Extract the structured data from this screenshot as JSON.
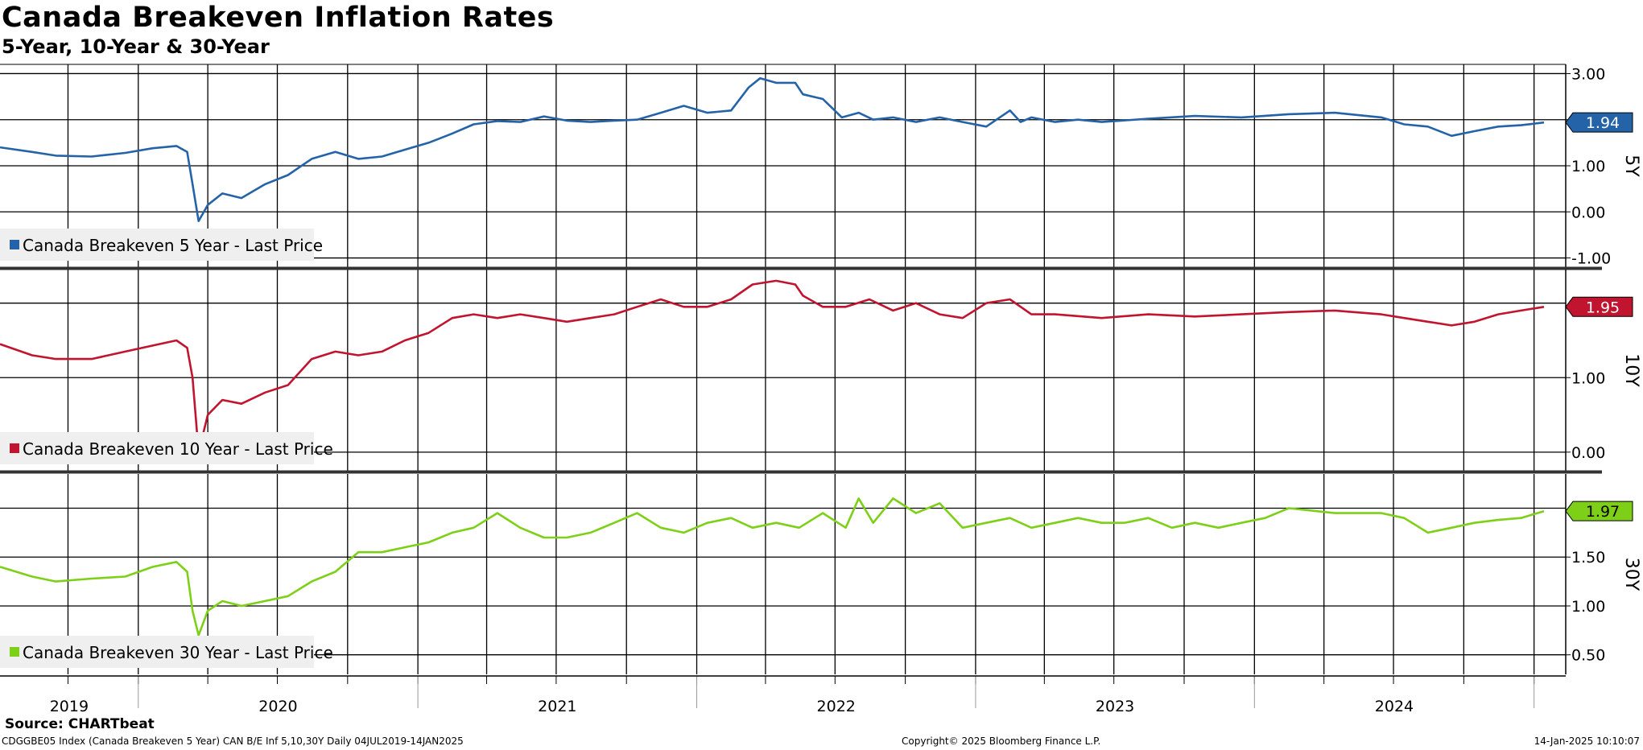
{
  "title": "Canada Breakeven Inflation Rates",
  "subtitle": "5-Year, 10-Year & 30-Year",
  "source": "Source: CHARTbeat",
  "footer": {
    "left": "CDGGBE05 Index (Canada Breakeven 5 Year) CAN B/E Inf 5,10,30Y  Daily 04JUL2019-14JAN2025",
    "center": "Copyright© 2025 Bloomberg Finance L.P.",
    "right": "14-Jan-2025 10:10:07"
  },
  "chart_data": {
    "type": "line",
    "x_range": [
      "2019-07-04",
      "2025-01-14"
    ],
    "x_tick_labels": [
      "2019",
      "2020",
      "2021",
      "2022",
      "2023",
      "2024"
    ],
    "colors": {
      "5Y": "#2563a8",
      "10Y": "#c0142f",
      "30Y": "#7dd017"
    },
    "panels": [
      {
        "axis_label": "5Y",
        "legend": "Canada Breakeven 5 Year  - Last Price",
        "last_value": "1.94",
        "ylim": [
          -1.2,
          3.2
        ],
        "y_ticks": [
          "3.00",
          "2.00",
          "1.00",
          "0.00",
          "-1.00"
        ],
        "y_tick_values": [
          3,
          2,
          1,
          0,
          -1
        ],
        "points": [
          [
            "2019-07-04",
            1.4
          ],
          [
            "2019-08-15",
            1.3
          ],
          [
            "2019-09-15",
            1.22
          ],
          [
            "2019-11-01",
            1.2
          ],
          [
            "2019-12-15",
            1.28
          ],
          [
            "2020-01-20",
            1.38
          ],
          [
            "2020-02-20",
            1.43
          ],
          [
            "2020-03-05",
            1.3
          ],
          [
            "2020-03-12",
            0.6
          ],
          [
            "2020-03-20",
            -0.2
          ],
          [
            "2020-04-01",
            0.15
          ],
          [
            "2020-04-20",
            0.4
          ],
          [
            "2020-05-15",
            0.3
          ],
          [
            "2020-06-15",
            0.6
          ],
          [
            "2020-07-15",
            0.8
          ],
          [
            "2020-08-15",
            1.15
          ],
          [
            "2020-09-15",
            1.3
          ],
          [
            "2020-10-15",
            1.15
          ],
          [
            "2020-11-15",
            1.2
          ],
          [
            "2020-12-15",
            1.35
          ],
          [
            "2021-01-15",
            1.5
          ],
          [
            "2021-02-15",
            1.7
          ],
          [
            "2021-03-15",
            1.9
          ],
          [
            "2021-04-15",
            1.97
          ],
          [
            "2021-05-15",
            1.95
          ],
          [
            "2021-06-15",
            2.07
          ],
          [
            "2021-07-15",
            1.98
          ],
          [
            "2021-08-15",
            1.95
          ],
          [
            "2021-09-15",
            1.98
          ],
          [
            "2021-10-15",
            2.0
          ],
          [
            "2021-11-15",
            2.15
          ],
          [
            "2021-12-15",
            2.3
          ],
          [
            "2022-01-15",
            2.15
          ],
          [
            "2022-02-15",
            2.2
          ],
          [
            "2022-03-10",
            2.7
          ],
          [
            "2022-03-25",
            2.9
          ],
          [
            "2022-04-15",
            2.8
          ],
          [
            "2022-05-10",
            2.8
          ],
          [
            "2022-05-20",
            2.55
          ],
          [
            "2022-06-15",
            2.45
          ],
          [
            "2022-07-10",
            2.05
          ],
          [
            "2022-08-01",
            2.15
          ],
          [
            "2022-08-20",
            2.0
          ],
          [
            "2022-09-15",
            2.05
          ],
          [
            "2022-10-15",
            1.95
          ],
          [
            "2022-11-15",
            2.05
          ],
          [
            "2022-12-15",
            1.95
          ],
          [
            "2023-01-15",
            1.85
          ],
          [
            "2023-02-15",
            2.2
          ],
          [
            "2023-03-01",
            1.95
          ],
          [
            "2023-03-15",
            2.05
          ],
          [
            "2023-04-15",
            1.95
          ],
          [
            "2023-05-15",
            2.0
          ],
          [
            "2023-06-15",
            1.95
          ],
          [
            "2023-08-15",
            2.02
          ],
          [
            "2023-10-15",
            2.08
          ],
          [
            "2023-12-15",
            2.05
          ],
          [
            "2024-02-15",
            2.12
          ],
          [
            "2024-04-15",
            2.15
          ],
          [
            "2024-06-15",
            2.05
          ],
          [
            "2024-07-15",
            1.9
          ],
          [
            "2024-08-15",
            1.85
          ],
          [
            "2024-09-15",
            1.65
          ],
          [
            "2024-10-15",
            1.75
          ],
          [
            "2024-11-15",
            1.85
          ],
          [
            "2024-12-15",
            1.88
          ],
          [
            "2025-01-14",
            1.94
          ]
        ]
      },
      {
        "axis_label": "10Y",
        "legend": "Canada Breakeven 10 Year  - Last Price",
        "last_value": "1.95",
        "ylim": [
          -0.25,
          2.45
        ],
        "y_ticks": [
          "1.00",
          "0.00"
        ],
        "y_tick_values": [
          1,
          0
        ],
        "grid_values": [
          2
        ],
        "points": [
          [
            "2019-07-04",
            1.45
          ],
          [
            "2019-08-15",
            1.3
          ],
          [
            "2019-09-15",
            1.25
          ],
          [
            "2019-11-01",
            1.25
          ],
          [
            "2019-12-15",
            1.35
          ],
          [
            "2020-01-20",
            1.43
          ],
          [
            "2020-02-20",
            1.5
          ],
          [
            "2020-03-05",
            1.4
          ],
          [
            "2020-03-12",
            1.0
          ],
          [
            "2020-03-20",
            0.0
          ],
          [
            "2020-04-01",
            0.5
          ],
          [
            "2020-04-20",
            0.7
          ],
          [
            "2020-05-15",
            0.65
          ],
          [
            "2020-06-15",
            0.8
          ],
          [
            "2020-07-15",
            0.9
          ],
          [
            "2020-08-15",
            1.25
          ],
          [
            "2020-09-15",
            1.35
          ],
          [
            "2020-10-15",
            1.3
          ],
          [
            "2020-11-15",
            1.35
          ],
          [
            "2020-12-15",
            1.5
          ],
          [
            "2021-01-15",
            1.6
          ],
          [
            "2021-02-15",
            1.8
          ],
          [
            "2021-03-15",
            1.85
          ],
          [
            "2021-04-15",
            1.8
          ],
          [
            "2021-05-15",
            1.85
          ],
          [
            "2021-06-15",
            1.8
          ],
          [
            "2021-07-15",
            1.75
          ],
          [
            "2021-08-15",
            1.8
          ],
          [
            "2021-09-15",
            1.85
          ],
          [
            "2021-10-15",
            1.95
          ],
          [
            "2021-11-15",
            2.05
          ],
          [
            "2021-12-15",
            1.95
          ],
          [
            "2022-01-15",
            1.95
          ],
          [
            "2022-02-15",
            2.05
          ],
          [
            "2022-03-15",
            2.25
          ],
          [
            "2022-04-15",
            2.3
          ],
          [
            "2022-05-10",
            2.25
          ],
          [
            "2022-05-20",
            2.1
          ],
          [
            "2022-06-15",
            1.95
          ],
          [
            "2022-07-15",
            1.95
          ],
          [
            "2022-08-15",
            2.05
          ],
          [
            "2022-09-15",
            1.9
          ],
          [
            "2022-10-15",
            2.0
          ],
          [
            "2022-11-15",
            1.85
          ],
          [
            "2022-12-15",
            1.8
          ],
          [
            "2023-01-15",
            2.0
          ],
          [
            "2023-02-15",
            2.05
          ],
          [
            "2023-03-15",
            1.85
          ],
          [
            "2023-04-15",
            1.85
          ],
          [
            "2023-06-15",
            1.8
          ],
          [
            "2023-08-15",
            1.85
          ],
          [
            "2023-10-15",
            1.82
          ],
          [
            "2023-12-15",
            1.85
          ],
          [
            "2024-02-15",
            1.88
          ],
          [
            "2024-04-15",
            1.9
          ],
          [
            "2024-06-15",
            1.85
          ],
          [
            "2024-07-15",
            1.8
          ],
          [
            "2024-08-15",
            1.75
          ],
          [
            "2024-09-15",
            1.7
          ],
          [
            "2024-10-15",
            1.75
          ],
          [
            "2024-11-15",
            1.85
          ],
          [
            "2024-12-15",
            1.9
          ],
          [
            "2025-01-14",
            1.95
          ]
        ]
      },
      {
        "axis_label": "30Y",
        "legend": "Canada Breakeven 30 Year  - Last Price",
        "last_value": "1.97",
        "ylim": [
          0.3,
          2.35
        ],
        "y_ticks": [
          "1.50",
          "1.00",
          "0.50"
        ],
        "y_tick_values": [
          1.5,
          1.0,
          0.5
        ],
        "grid_values": [
          2.0
        ],
        "points": [
          [
            "2019-07-04",
            1.4
          ],
          [
            "2019-08-15",
            1.3
          ],
          [
            "2019-09-15",
            1.25
          ],
          [
            "2019-11-01",
            1.28
          ],
          [
            "2019-12-15",
            1.3
          ],
          [
            "2020-01-20",
            1.4
          ],
          [
            "2020-02-20",
            1.45
          ],
          [
            "2020-03-05",
            1.35
          ],
          [
            "2020-03-12",
            0.95
          ],
          [
            "2020-03-20",
            0.7
          ],
          [
            "2020-04-01",
            0.95
          ],
          [
            "2020-04-20",
            1.05
          ],
          [
            "2020-05-15",
            1.0
          ],
          [
            "2020-06-15",
            1.05
          ],
          [
            "2020-07-15",
            1.1
          ],
          [
            "2020-08-15",
            1.25
          ],
          [
            "2020-09-15",
            1.35
          ],
          [
            "2020-10-15",
            1.55
          ],
          [
            "2020-11-15",
            1.55
          ],
          [
            "2020-12-15",
            1.6
          ],
          [
            "2021-01-15",
            1.65
          ],
          [
            "2021-02-15",
            1.75
          ],
          [
            "2021-03-15",
            1.8
          ],
          [
            "2021-04-15",
            1.95
          ],
          [
            "2021-05-15",
            1.8
          ],
          [
            "2021-06-15",
            1.7
          ],
          [
            "2021-07-15",
            1.7
          ],
          [
            "2021-08-15",
            1.75
          ],
          [
            "2021-09-15",
            1.85
          ],
          [
            "2021-10-15",
            1.95
          ],
          [
            "2021-11-15",
            1.8
          ],
          [
            "2021-12-15",
            1.75
          ],
          [
            "2022-01-15",
            1.85
          ],
          [
            "2022-02-15",
            1.9
          ],
          [
            "2022-03-15",
            1.8
          ],
          [
            "2022-04-15",
            1.85
          ],
          [
            "2022-05-15",
            1.8
          ],
          [
            "2022-06-15",
            1.95
          ],
          [
            "2022-07-15",
            1.8
          ],
          [
            "2022-08-01",
            2.1
          ],
          [
            "2022-08-20",
            1.85
          ],
          [
            "2022-09-15",
            2.1
          ],
          [
            "2022-10-15",
            1.95
          ],
          [
            "2022-11-15",
            2.05
          ],
          [
            "2022-12-15",
            1.8
          ],
          [
            "2023-01-15",
            1.85
          ],
          [
            "2023-02-15",
            1.9
          ],
          [
            "2023-03-15",
            1.8
          ],
          [
            "2023-04-15",
            1.85
          ],
          [
            "2023-05-15",
            1.9
          ],
          [
            "2023-06-15",
            1.85
          ],
          [
            "2023-07-15",
            1.85
          ],
          [
            "2023-08-15",
            1.9
          ],
          [
            "2023-09-15",
            1.8
          ],
          [
            "2023-10-15",
            1.85
          ],
          [
            "2023-11-15",
            1.8
          ],
          [
            "2023-12-15",
            1.85
          ],
          [
            "2024-01-15",
            1.9
          ],
          [
            "2024-02-15",
            2.0
          ],
          [
            "2024-04-15",
            1.95
          ],
          [
            "2024-06-15",
            1.95
          ],
          [
            "2024-07-15",
            1.9
          ],
          [
            "2024-08-15",
            1.75
          ],
          [
            "2024-09-15",
            1.8
          ],
          [
            "2024-10-15",
            1.85
          ],
          [
            "2024-11-15",
            1.88
          ],
          [
            "2024-12-15",
            1.9
          ],
          [
            "2025-01-14",
            1.97
          ]
        ]
      }
    ]
  }
}
